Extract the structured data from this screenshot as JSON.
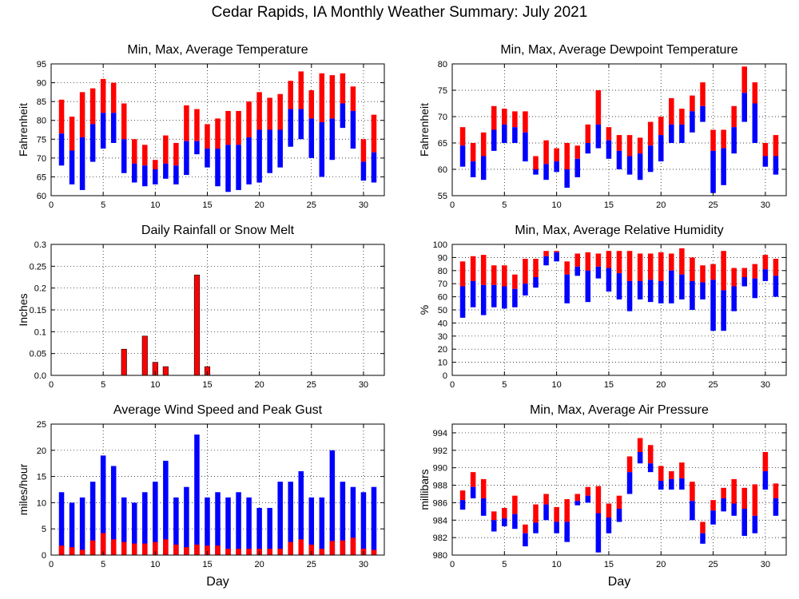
{
  "page": {
    "title": "Cedar Rapids, IA Monthly Weather Summary: July 2021"
  },
  "colors": {
    "max_segment": "#ff0000",
    "min_segment": "#0000ff",
    "gust_segment": "#0000ff",
    "wind_segment": "#ff0000",
    "rain_bar": "#ff0000",
    "grid": "#000000"
  },
  "chart_data": [
    {
      "id": "temperature",
      "type": "bar",
      "style": "floating-range",
      "title": "Min, Max, Average Temperature",
      "xlabel": "",
      "ylabel": "Fahrenheit",
      "xlim": [
        0,
        32
      ],
      "ylim": [
        60,
        95
      ],
      "xticks": [
        0,
        5,
        10,
        15,
        20,
        25,
        30
      ],
      "yticks": [
        60,
        65,
        70,
        75,
        80,
        85,
        90,
        95
      ],
      "grid": true,
      "x": [
        1,
        2,
        3,
        4,
        5,
        6,
        7,
        8,
        9,
        10,
        11,
        12,
        13,
        14,
        15,
        16,
        17,
        18,
        19,
        20,
        21,
        22,
        23,
        24,
        25,
        26,
        27,
        28,
        29,
        30,
        31
      ],
      "min": [
        68,
        63,
        61.5,
        69,
        72.5,
        74,
        66,
        63.5,
        62.5,
        63,
        64.5,
        63,
        65.5,
        71,
        67.5,
        62.5,
        61,
        61.5,
        63,
        63.5,
        66,
        67.5,
        73,
        75,
        70,
        65,
        69.5,
        78,
        72.5,
        64,
        63.5
      ],
      "avg": [
        76.5,
        72,
        75.5,
        79,
        82,
        82,
        75,
        68.5,
        68,
        67,
        68.5,
        68,
        74.5,
        74.5,
        72.5,
        72.5,
        73.5,
        73.5,
        75.5,
        77.5,
        77.5,
        77.5,
        83,
        83,
        80.5,
        79.5,
        80.5,
        84.5,
        82.5,
        69,
        71.5
      ],
      "max": [
        85.5,
        81,
        87.5,
        88.5,
        91,
        90,
        84.5,
        75,
        73.5,
        69.5,
        76,
        74,
        84,
        83,
        79,
        80.5,
        82.5,
        82.5,
        85,
        87.5,
        86,
        87,
        90.5,
        93,
        88,
        92.5,
        92,
        92.5,
        89,
        75,
        81.5
      ]
    },
    {
      "id": "dewpoint",
      "type": "bar",
      "style": "floating-range",
      "title": "Min, Max, Average Dewpoint Temperature",
      "xlabel": "",
      "ylabel": "Fahrenheit",
      "xlim": [
        0,
        32
      ],
      "ylim": [
        55,
        80
      ],
      "xticks": [
        0,
        5,
        10,
        15,
        20,
        25,
        30
      ],
      "yticks": [
        55,
        60,
        65,
        70,
        75,
        80
      ],
      "grid": true,
      "x": [
        1,
        2,
        3,
        4,
        5,
        6,
        7,
        8,
        9,
        10,
        11,
        12,
        13,
        14,
        15,
        16,
        17,
        18,
        19,
        20,
        21,
        22,
        23,
        24,
        25,
        26,
        27,
        28,
        29,
        30,
        31
      ],
      "min": [
        60.5,
        58.5,
        58,
        63.5,
        65,
        65,
        61.5,
        59,
        58,
        59.5,
        56.5,
        58.5,
        63,
        64,
        62,
        60,
        59,
        58,
        59.5,
        61.5,
        65,
        65,
        67,
        69,
        55.5,
        57,
        63,
        69,
        65,
        60.5,
        59
      ],
      "avg": [
        64.5,
        61.5,
        62.5,
        67.5,
        68.5,
        68,
        67,
        60,
        61,
        61.5,
        60,
        62,
        65,
        68.5,
        65.5,
        63.5,
        62.5,
        63,
        64.5,
        66.5,
        68.5,
        68.5,
        71,
        72,
        63.5,
        64,
        68,
        74.5,
        72.5,
        62.5,
        62.5
      ],
      "max": [
        68,
        65,
        67,
        72,
        71.5,
        71,
        71,
        62.5,
        65.5,
        64,
        65,
        64.5,
        68.5,
        75,
        68,
        66.5,
        66.5,
        66,
        69,
        70,
        73.5,
        71.5,
        74,
        76.5,
        67.5,
        67.5,
        72,
        79.5,
        76.5,
        65,
        66.5
      ]
    },
    {
      "id": "rainfall",
      "type": "bar",
      "title": "Daily Rainfall or Snow Melt",
      "xlabel": "",
      "ylabel": "Inches",
      "xlim": [
        0,
        32
      ],
      "ylim": [
        0,
        0.3
      ],
      "xticks": [
        0,
        5,
        10,
        15,
        20,
        25,
        30
      ],
      "yticks": [
        0,
        0.05,
        0.1,
        0.15,
        0.2,
        0.25,
        0.3
      ],
      "ytick_labels": [
        "0.0",
        "0.05",
        "0.1",
        "0.15",
        "0.2",
        "0.25",
        "0.3"
      ],
      "grid": true,
      "x": [
        7,
        9,
        10,
        11,
        14,
        15
      ],
      "values": [
        0.06,
        0.09,
        0.03,
        0.02,
        0.23,
        0.02
      ]
    },
    {
      "id": "humidity",
      "type": "bar",
      "style": "floating-range",
      "title": "Min, Max, Average Relative Humidity",
      "xlabel": "",
      "ylabel": "%",
      "xlim": [
        0,
        32
      ],
      "ylim": [
        0,
        100
      ],
      "xticks": [
        0,
        5,
        10,
        15,
        20,
        25,
        30
      ],
      "yticks": [
        0,
        10,
        20,
        30,
        40,
        50,
        60,
        70,
        80,
        90,
        100
      ],
      "grid": true,
      "x": [
        1,
        2,
        3,
        4,
        5,
        6,
        7,
        8,
        9,
        10,
        11,
        12,
        13,
        14,
        15,
        16,
        17,
        18,
        19,
        20,
        21,
        22,
        23,
        24,
        25,
        26,
        27,
        28,
        29,
        30,
        31
      ],
      "min": [
        44,
        52,
        46,
        52,
        51,
        52,
        61,
        67,
        84,
        87,
        55,
        76,
        56,
        74,
        64,
        58,
        49,
        58,
        56,
        55,
        55,
        58,
        50,
        58,
        34,
        34,
        49,
        68,
        59,
        72,
        60
      ],
      "avg": [
        68,
        72,
        69,
        69,
        68,
        66,
        70,
        75,
        91,
        94,
        77,
        83,
        80,
        83,
        82,
        78,
        72,
        72,
        73,
        72,
        80,
        77,
        72,
        71,
        73,
        65,
        68,
        75,
        74,
        81,
        76
      ],
      "max": [
        87,
        91,
        92,
        84,
        84,
        77,
        89,
        89,
        95,
        95,
        87,
        93,
        94,
        93,
        95,
        95,
        95,
        93,
        93,
        94,
        93,
        97,
        90,
        84,
        85,
        95,
        82,
        82,
        85,
        92,
        89
      ]
    },
    {
      "id": "wind",
      "type": "bar",
      "style": "stacked-overlay",
      "title": "Average Wind Speed and Peak Gust",
      "xlabel": "Day",
      "ylabel": "miles/hour",
      "xlim": [
        0,
        32
      ],
      "ylim": [
        0,
        25
      ],
      "xticks": [
        0,
        5,
        10,
        15,
        20,
        25,
        30
      ],
      "yticks": [
        0,
        5,
        10,
        15,
        20,
        25
      ],
      "grid": true,
      "x": [
        1,
        2,
        3,
        4,
        5,
        6,
        7,
        8,
        9,
        10,
        11,
        12,
        13,
        14,
        15,
        16,
        17,
        18,
        19,
        20,
        21,
        22,
        23,
        24,
        25,
        26,
        27,
        28,
        29,
        30,
        31
      ],
      "avg_speed": [
        1.8,
        1.5,
        1,
        2.8,
        4.2,
        3,
        2.5,
        2.2,
        2.2,
        2.5,
        3,
        2,
        1.5,
        2,
        1.8,
        1.8,
        1.2,
        1.2,
        1.2,
        1.2,
        1.2,
        1.2,
        2.5,
        3,
        2,
        1.2,
        2.7,
        2.8,
        3.3,
        1.2,
        1
      ],
      "peak_gust": [
        12,
        10,
        11,
        14,
        19,
        17,
        11,
        10,
        12,
        14,
        18,
        11,
        13,
        23,
        11,
        12,
        11,
        12,
        11,
        9,
        9,
        14,
        14,
        16,
        11,
        11,
        20,
        14,
        13,
        12,
        13
      ]
    },
    {
      "id": "pressure",
      "type": "bar",
      "style": "floating-range",
      "title": "Min, Max, Average Air Pressure",
      "xlabel": "Day",
      "ylabel": "millibars",
      "xlim": [
        0,
        32
      ],
      "ylim": [
        980,
        995
      ],
      "xticks": [
        0,
        5,
        10,
        15,
        20,
        25,
        30
      ],
      "yticks": [
        980,
        982,
        984,
        986,
        988,
        990,
        992,
        994
      ],
      "grid": true,
      "x": [
        1,
        2,
        3,
        4,
        5,
        6,
        7,
        8,
        9,
        10,
        11,
        12,
        13,
        14,
        15,
        16,
        17,
        18,
        19,
        20,
        21,
        22,
        23,
        24,
        25,
        26,
        27,
        28,
        29,
        30,
        31
      ],
      "min": [
        985.2,
        986.5,
        984.5,
        982.7,
        983.3,
        983,
        981,
        982.5,
        984,
        982.5,
        981.5,
        985.7,
        986,
        980.3,
        982.5,
        983.8,
        987,
        990.5,
        989.5,
        987.5,
        987.5,
        987.5,
        984,
        981.3,
        983.5,
        985,
        984.5,
        982.2,
        982.5,
        987.5,
        984.5
      ],
      "avg": [
        986.3,
        987.8,
        986.5,
        984,
        984.2,
        984.7,
        982.5,
        983.7,
        985.8,
        983.8,
        983.8,
        986.2,
        986.8,
        984.8,
        984.3,
        985.3,
        989.5,
        991.8,
        990.5,
        988.5,
        988.7,
        988.8,
        986.2,
        982.5,
        985.1,
        986.5,
        985.9,
        985.3,
        984.5,
        989.6,
        986.5
      ],
      "max": [
        987.4,
        989.5,
        988.7,
        985,
        985.4,
        986.8,
        983.5,
        985.8,
        987,
        985.5,
        986.4,
        987,
        987.8,
        987.9,
        985.9,
        986.8,
        991.3,
        993.4,
        992.6,
        990.2,
        989.6,
        990.6,
        988.4,
        983.8,
        986.3,
        987.7,
        988.7,
        987.7,
        988.1,
        991.8,
        988.2
      ]
    }
  ]
}
